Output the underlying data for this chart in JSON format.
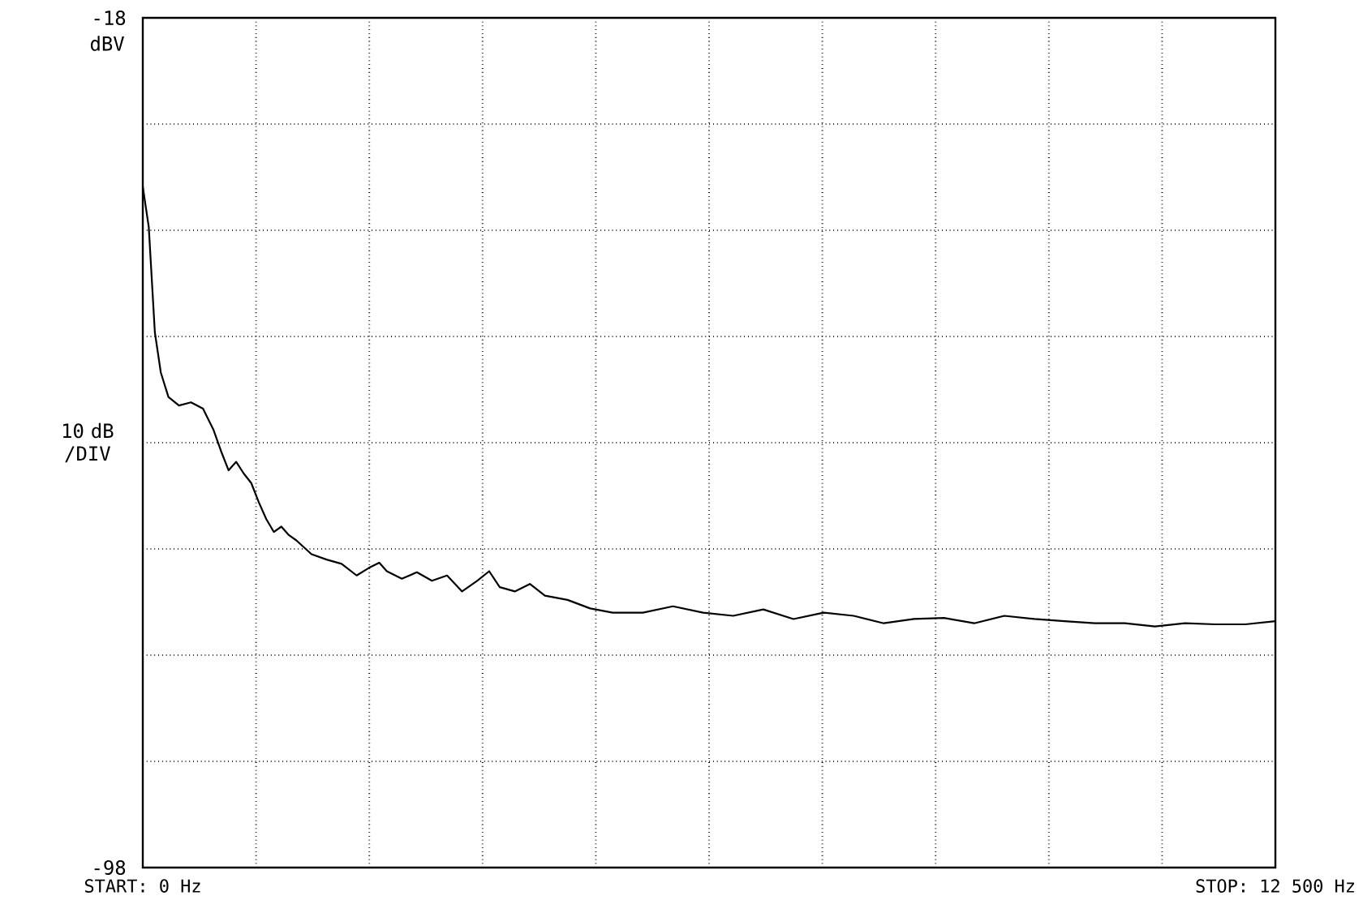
{
  "chart_data": {
    "type": "line",
    "ylabel": "dBV",
    "annotations": [
      "10 dB /DIV"
    ],
    "xlim": [
      0,
      12500
    ],
    "ylim": [
      -98,
      -18
    ],
    "xticks": [
      {
        "value": 0,
        "label": "START: 0 Hz"
      },
      {
        "value": 1250,
        "label": null
      },
      {
        "value": 2500,
        "label": null
      },
      {
        "value": 3750,
        "label": null
      },
      {
        "value": 5000,
        "label": null
      },
      {
        "value": 6250,
        "label": null
      },
      {
        "value": 7500,
        "label": null
      },
      {
        "value": 8750,
        "label": null
      },
      {
        "value": 10000,
        "label": null
      },
      {
        "value": 11250,
        "label": null
      },
      {
        "value": 12500,
        "label": "STOP: 12 500 Hz"
      }
    ],
    "yticks": [
      {
        "value": -98,
        "label": "-98"
      },
      {
        "value": -88,
        "label": null
      },
      {
        "value": -78,
        "label": null
      },
      {
        "value": -68,
        "label": null
      },
      {
        "value": -58,
        "label": null
      },
      {
        "value": -48,
        "label": null
      },
      {
        "value": -38,
        "label": null
      },
      {
        "value": -28,
        "label": null
      },
      {
        "value": -18,
        "label": "-18"
      }
    ],
    "grid": true,
    "line_style": "solid",
    "series": [
      {
        "color": "#000000",
        "x": [
          0,
          66,
          133,
          199,
          283,
          399,
          532,
          665,
          781,
          864,
          947,
          1031,
          1114,
          1197,
          1280,
          1363,
          1446,
          1529,
          1612,
          1695,
          1862,
          2028,
          2194,
          2360,
          2493,
          2610,
          2693,
          2859,
          3025,
          3191,
          3358,
          3524,
          3690,
          3823,
          3939,
          4106,
          4272,
          4438,
          4688,
          4937,
          5186,
          5519,
          5851,
          6184,
          6516,
          6848,
          7181,
          7513,
          7846,
          8178,
          8511,
          8843,
          9176,
          9508,
          9840,
          10173,
          10505,
          10838,
          11170,
          11503,
          11835,
          12168,
          12500
        ],
        "values": [
          -33.9,
          -37.7,
          -47.6,
          -51.4,
          -53.7,
          -54.5,
          -54.2,
          -54.8,
          -56.8,
          -58.8,
          -60.6,
          -59.8,
          -60.9,
          -61.8,
          -63.6,
          -65.2,
          -66.4,
          -65.9,
          -66.7,
          -67.2,
          -68.5,
          -69.0,
          -69.4,
          -70.5,
          -69.8,
          -69.3,
          -70.1,
          -70.8,
          -70.2,
          -71.0,
          -70.5,
          -72.0,
          -71.0,
          -70.1,
          -71.6,
          -72.0,
          -71.3,
          -72.4,
          -72.8,
          -73.6,
          -74.0,
          -74.0,
          -73.4,
          -74.0,
          -74.3,
          -73.7,
          -74.6,
          -74.0,
          -74.3,
          -75.0,
          -74.6,
          -74.5,
          -75.0,
          -74.3,
          -74.6,
          -74.8,
          -75.0,
          -75.0,
          -75.3,
          -75.0,
          -75.1,
          -75.1,
          -74.8
        ]
      }
    ]
  }
}
